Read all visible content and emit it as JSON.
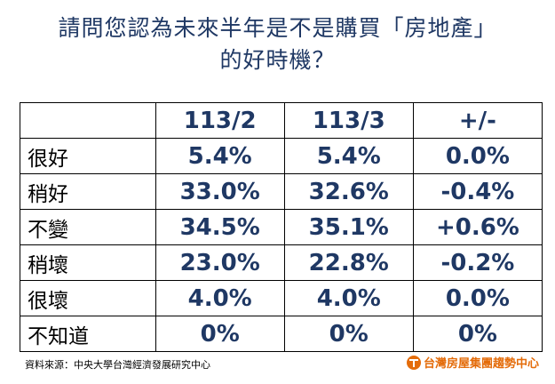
{
  "title_line1": "請問您認為未來半年是不是購買「房地產」",
  "title_line2": "的好時機？",
  "table": {
    "corner": "",
    "columns": [
      "113/2",
      "113/3",
      "+/-"
    ],
    "rows": [
      {
        "label": "很好",
        "values": [
          "5.4%",
          "5.4%",
          "0.0%"
        ]
      },
      {
        "label": "稍好",
        "values": [
          "33.0%",
          "32.6%",
          "-0.4%"
        ]
      },
      {
        "label": "不變",
        "values": [
          "34.5%",
          "35.1%",
          "+0.6%"
        ]
      },
      {
        "label": "稍壞",
        "values": [
          "23.0%",
          "22.8%",
          "-0.2%"
        ]
      },
      {
        "label": "很壞",
        "values": [
          "4.0%",
          "4.0%",
          "0.0%"
        ]
      },
      {
        "label": "不知道",
        "values": [
          "0%",
          "0%",
          "0%"
        ]
      }
    ]
  },
  "footer": {
    "source": "資料來源：中央大學台灣經濟發展研究中心",
    "logo_text": "台灣房屋集團趨勢中心",
    "logo_icon": "house-t-logo-icon"
  },
  "colors": {
    "title": "#1f3864",
    "values": "#1f3864",
    "logo": "#e46c0a"
  }
}
